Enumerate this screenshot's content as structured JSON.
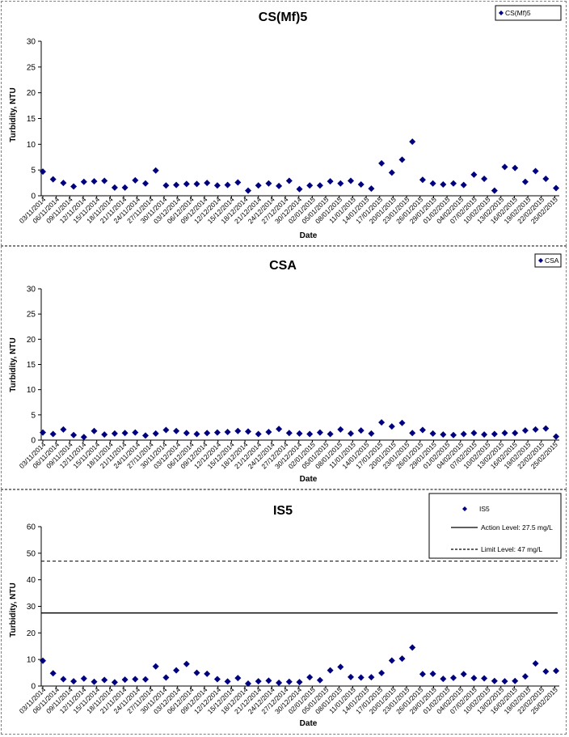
{
  "chart_data": [
    {
      "type": "scatter",
      "title": "CS(Mf)5",
      "xlabel": "Date",
      "ylabel": "Turbidity, NTU",
      "ylim": [
        0,
        30
      ],
      "yticks": [
        0,
        5,
        10,
        15,
        20,
        25,
        30
      ],
      "xticks": [
        "03/11/2014",
        "06/11/2014",
        "09/11/2014",
        "12/11/2014",
        "15/11/2014",
        "18/11/2014",
        "21/11/2014",
        "24/11/2014",
        "27/11/2014",
        "30/11/2014",
        "03/12/2014",
        "06/12/2014",
        "09/12/2014",
        "12/12/2014",
        "15/12/2014",
        "18/12/2014",
        "21/12/2014",
        "24/12/2014",
        "27/12/2014",
        "30/12/2014",
        "02/01/2015",
        "05/01/2015",
        "08/01/2015",
        "11/01/2015",
        "14/01/2015",
        "17/01/2015",
        "20/01/2015",
        "23/01/2015",
        "26/01/2015",
        "29/01/2015",
        "01/02/2015",
        "04/02/2015",
        "07/02/2015",
        "10/02/2015",
        "13/02/2015",
        "16/02/2015",
        "19/02/2015",
        "22/02/2015",
        "25/02/2015"
      ],
      "legend": "top-right",
      "series": [
        {
          "name": "CS(Mf)5",
          "color": "#00007f",
          "marker": "diamond",
          "values": [
            4.7,
            3.2,
            2.5,
            1.8,
            2.7,
            2.8,
            2.9,
            1.6,
            1.6,
            3.0,
            2.4,
            4.9,
            2.0,
            2.1,
            2.3,
            2.3,
            2.5,
            2.0,
            2.1,
            2.6,
            1.0,
            2.0,
            2.4,
            1.9,
            2.9,
            1.3,
            2.0,
            2.0,
            2.8,
            2.4,
            2.9,
            2.2,
            1.4,
            6.3,
            4.5,
            7.0,
            10.5,
            3.1,
            2.4,
            2.2,
            2.4,
            2.1,
            4.1,
            3.3,
            1.0,
            5.6,
            5.4,
            2.7,
            4.8,
            3.3,
            1.5
          ]
        }
      ]
    },
    {
      "type": "scatter",
      "title": "CSA",
      "xlabel": "Date",
      "ylabel": "Turbidity, NTU",
      "ylim": [
        0,
        30
      ],
      "yticks": [
        0,
        5,
        10,
        15,
        20,
        25,
        30
      ],
      "xticks": [
        "03/11/2014",
        "06/11/2014",
        "09/11/2014",
        "12/11/2014",
        "15/11/2014",
        "18/11/2014",
        "21/11/2014",
        "24/11/2014",
        "27/11/2014",
        "30/11/2014",
        "03/12/2014",
        "06/12/2014",
        "09/12/2014",
        "12/12/2014",
        "15/12/2014",
        "18/12/2014",
        "21/12/2014",
        "24/12/2014",
        "27/12/2014",
        "30/12/2014",
        "02/01/2015",
        "05/01/2015",
        "08/01/2015",
        "11/01/2015",
        "14/01/2015",
        "17/01/2015",
        "20/01/2015",
        "23/01/2015",
        "26/01/2015",
        "29/01/2015",
        "01/02/2015",
        "04/02/2015",
        "07/02/2015",
        "10/02/2015",
        "13/02/2015",
        "16/02/2015",
        "19/02/2015",
        "22/02/2015",
        "25/02/2015"
      ],
      "legend": "top-right",
      "series": [
        {
          "name": "CSA",
          "color": "#00007f",
          "marker": "diamond",
          "values": [
            1.5,
            1.2,
            2.1,
            1.0,
            0.6,
            1.8,
            1.1,
            1.3,
            1.4,
            1.5,
            0.9,
            1.3,
            2.0,
            1.8,
            1.4,
            1.2,
            1.4,
            1.5,
            1.6,
            1.8,
            1.7,
            1.2,
            1.6,
            2.2,
            1.4,
            1.3,
            1.2,
            1.5,
            1.2,
            2.1,
            1.3,
            1.9,
            1.3,
            3.5,
            2.7,
            3.4,
            1.4,
            2.0,
            1.3,
            1.1,
            1.0,
            1.2,
            1.4,
            1.1,
            1.2,
            1.4,
            1.4,
            1.9,
            2.1,
            2.3,
            0.7
          ]
        }
      ]
    },
    {
      "type": "scatter",
      "title": "IS5",
      "xlabel": "Date",
      "ylabel": "Turbidity, NTU",
      "ylim": [
        0,
        60
      ],
      "yticks": [
        0,
        10,
        20,
        30,
        40,
        50,
        60
      ],
      "xticks": [
        "03/11/2014",
        "06/11/2014",
        "09/11/2014",
        "12/11/2014",
        "15/11/2014",
        "18/11/2014",
        "21/11/2014",
        "24/11/2014",
        "27/11/2014",
        "30/11/2014",
        "03/12/2014",
        "06/12/2014",
        "09/12/2014",
        "12/12/2014",
        "15/12/2014",
        "18/12/2014",
        "21/12/2014",
        "24/12/2014",
        "27/12/2014",
        "30/12/2014",
        "02/01/2015",
        "05/01/2015",
        "08/01/2015",
        "11/01/2015",
        "14/01/2015",
        "17/01/2015",
        "20/01/2015",
        "23/01/2015",
        "26/01/2015",
        "29/01/2015",
        "01/02/2015",
        "04/02/2015",
        "07/02/2015",
        "10/02/2015",
        "13/02/2015",
        "16/02/2015",
        "19/02/2015",
        "22/02/2015",
        "25/02/2015"
      ],
      "legend": "top-right",
      "series": [
        {
          "name": "IS5",
          "color": "#00007f",
          "marker": "diamond",
          "values": [
            9.5,
            4.8,
            2.6,
            1.8,
            2.8,
            1.6,
            2.3,
            1.4,
            2.4,
            2.6,
            2.5,
            7.4,
            3.2,
            5.9,
            8.3,
            5.0,
            4.6,
            2.6,
            1.7,
            3.0,
            0.9,
            1.8,
            2.0,
            1.2,
            1.6,
            1.5,
            3.3,
            2.2,
            5.9,
            7.2,
            3.4,
            3.2,
            3.3,
            4.9,
            9.6,
            10.3,
            14.5,
            4.5,
            4.6,
            2.7,
            3.1,
            4.5,
            3.0,
            2.9,
            1.9,
            1.8,
            1.9,
            3.6,
            8.5,
            5.5,
            5.7
          ]
        }
      ],
      "lines": [
        {
          "name": "Action Level: 27.5 mg/L",
          "value": 27.5,
          "style": "solid",
          "color": "#000000"
        },
        {
          "name": "Limit Level: 47 mg/L",
          "value": 47,
          "style": "dashed",
          "color": "#000000"
        }
      ]
    }
  ]
}
